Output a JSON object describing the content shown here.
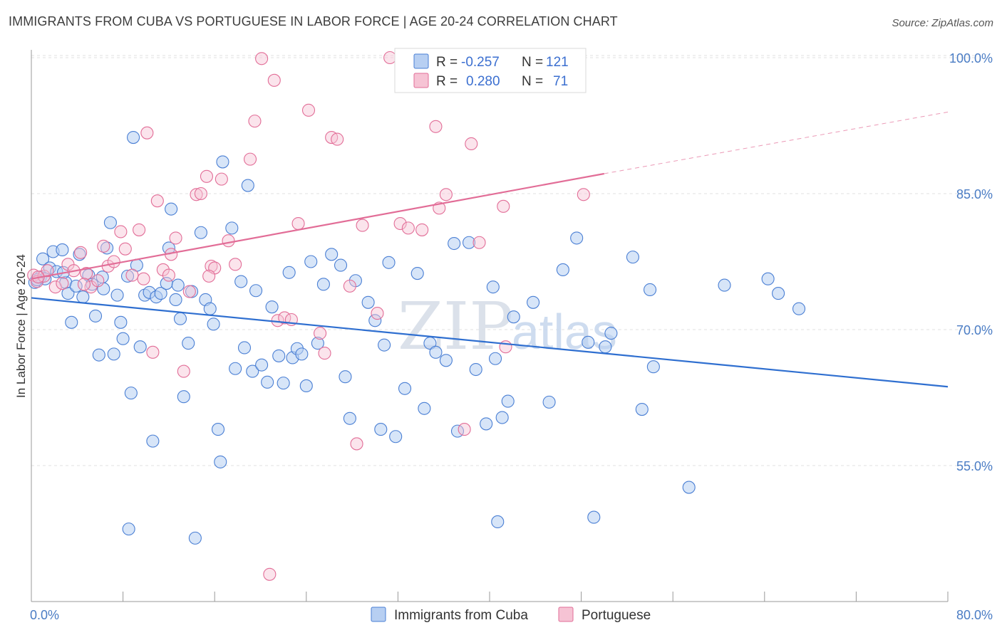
{
  "title": "IMMIGRANTS FROM CUBA VS PORTUGUESE IN LABOR FORCE | AGE 20-24 CORRELATION CHART",
  "source": "Source: ZipAtlas.com",
  "watermark": {
    "zip": "ZIP",
    "atlas": "atlas"
  },
  "legend": {
    "cuba": {
      "r_label": "R =",
      "r_value": "-0.257",
      "n_label": "N =",
      "n_value": "121"
    },
    "portuguese": {
      "r_label": "R =",
      "r_value": "0.280",
      "n_label": "N =",
      "n_value": "71"
    }
  },
  "bottom_legend": {
    "cuba": "Immigrants from Cuba",
    "portuguese": "Portuguese"
  },
  "colors": {
    "cuba": "#4a7fd4",
    "cuba_fill": "#b7cff2",
    "portuguese": "#e26d97",
    "portuguese_fill": "#f6c3d4",
    "tick": "#4a7cc4"
  },
  "chart_data": {
    "type": "scatter",
    "title": "IMMIGRANTS FROM CUBA VS PORTUGUESE IN LABOR FORCE | AGE 20-24 CORRELATION CHART",
    "xlabel": "",
    "ylabel": "In Labor Force | Age 20-24",
    "xlim": [
      0,
      80
    ],
    "ylim": [
      40,
      102
    ],
    "x_ticks": [
      "0.0%",
      "80.0%"
    ],
    "y_ticks": [
      {
        "value": 55,
        "label": "55.0%"
      },
      {
        "value": 70,
        "label": "70.0%"
      },
      {
        "value": 85,
        "label": "85.0%"
      },
      {
        "value": 100,
        "label": "100.0%"
      }
    ],
    "grid": true,
    "legend_position": "top-center",
    "series": [
      {
        "name": "Immigrants from Cuba",
        "trend": {
          "x0": 0,
          "y0": 73.5,
          "x1": 80,
          "y1": 63.7
        },
        "points": [
          [
            0.3,
            75.2
          ],
          [
            0.8,
            75.8
          ],
          [
            1.0,
            77.8
          ],
          [
            1.2,
            75.6
          ],
          [
            1.6,
            76.8
          ],
          [
            1.9,
            78.6
          ],
          [
            2.2,
            76.4
          ],
          [
            2.7,
            78.8
          ],
          [
            3.0,
            75.2
          ],
          [
            3.2,
            74.0
          ],
          [
            3.5,
            70.8
          ],
          [
            3.9,
            74.8
          ],
          [
            4.2,
            78.3
          ],
          [
            4.5,
            73.6
          ],
          [
            5.0,
            76.0
          ],
          [
            5.3,
            75.0
          ],
          [
            5.6,
            71.5
          ],
          [
            5.9,
            67.2
          ],
          [
            6.3,
            74.5
          ],
          [
            6.6,
            79.0
          ],
          [
            6.9,
            81.8
          ],
          [
            7.2,
            67.3
          ],
          [
            7.5,
            73.8
          ],
          [
            7.8,
            70.8
          ],
          [
            8.0,
            69.0
          ],
          [
            8.4,
            75.9
          ],
          [
            8.7,
            63.0
          ],
          [
            8.9,
            91.2
          ],
          [
            9.2,
            77.1
          ],
          [
            9.5,
            68.1
          ],
          [
            9.9,
            73.8
          ],
          [
            10.3,
            74.1
          ],
          [
            10.6,
            57.7
          ],
          [
            10.9,
            73.6
          ],
          [
            11.3,
            74.0
          ],
          [
            11.8,
            75.1
          ],
          [
            12.0,
            79.0
          ],
          [
            12.2,
            83.3
          ],
          [
            12.6,
            73.3
          ],
          [
            13.0,
            71.2
          ],
          [
            13.3,
            62.6
          ],
          [
            13.7,
            68.5
          ],
          [
            14.0,
            74.2
          ],
          [
            14.8,
            80.7
          ],
          [
            15.2,
            73.3
          ],
          [
            15.6,
            72.3
          ],
          [
            15.9,
            70.6
          ],
          [
            16.3,
            59.0
          ],
          [
            16.5,
            55.4
          ],
          [
            16.7,
            88.5
          ],
          [
            17.5,
            81.2
          ],
          [
            17.8,
            65.7
          ],
          [
            18.3,
            75.3
          ],
          [
            18.6,
            68.0
          ],
          [
            18.9,
            85.9
          ],
          [
            19.3,
            65.4
          ],
          [
            19.6,
            74.3
          ],
          [
            20.1,
            66.1
          ],
          [
            20.6,
            64.2
          ],
          [
            21.0,
            72.5
          ],
          [
            21.6,
            67.1
          ],
          [
            22.0,
            64.1
          ],
          [
            22.5,
            76.3
          ],
          [
            22.8,
            66.9
          ],
          [
            23.2,
            67.9
          ],
          [
            23.6,
            67.3
          ],
          [
            24.0,
            63.8
          ],
          [
            24.4,
            77.5
          ],
          [
            25.0,
            68.5
          ],
          [
            25.5,
            75.0
          ],
          [
            26.2,
            78.3
          ],
          [
            27.0,
            77.1
          ],
          [
            27.4,
            64.8
          ],
          [
            27.8,
            60.2
          ],
          [
            28.3,
            75.4
          ],
          [
            29.4,
            73.0
          ],
          [
            30.0,
            71.0
          ],
          [
            30.5,
            59.0
          ],
          [
            30.8,
            68.3
          ],
          [
            31.2,
            77.4
          ],
          [
            31.8,
            58.2
          ],
          [
            32.6,
            63.5
          ],
          [
            33.7,
            76.2
          ],
          [
            34.3,
            61.3
          ],
          [
            34.8,
            68.5
          ],
          [
            35.3,
            67.5
          ],
          [
            36.2,
            66.6
          ],
          [
            36.9,
            79.5
          ],
          [
            37.2,
            58.8
          ],
          [
            38.2,
            79.6
          ],
          [
            38.8,
            65.6
          ],
          [
            39.7,
            59.6
          ],
          [
            40.3,
            74.7
          ],
          [
            40.5,
            66.8
          ],
          [
            41.1,
            60.3
          ],
          [
            41.6,
            62.1
          ],
          [
            42.1,
            71.4
          ],
          [
            43.8,
            73.0
          ],
          [
            45.2,
            62.0
          ],
          [
            46.4,
            76.6
          ],
          [
            47.6,
            80.1
          ],
          [
            48.6,
            68.6
          ],
          [
            49.1,
            49.3
          ],
          [
            50.1,
            68.1
          ],
          [
            50.6,
            69.6
          ],
          [
            52.5,
            78.0
          ],
          [
            53.3,
            61.2
          ],
          [
            54.0,
            74.4
          ],
          [
            54.3,
            65.9
          ],
          [
            57.4,
            52.6
          ],
          [
            40.7,
            48.8
          ],
          [
            60.5,
            74.9
          ],
          [
            64.3,
            75.6
          ],
          [
            65.2,
            74.0
          ],
          [
            67.0,
            72.3
          ],
          [
            8.5,
            48.0
          ],
          [
            14.3,
            47.0
          ],
          [
            0.5,
            75.5
          ],
          [
            2.8,
            76.3
          ],
          [
            6.2,
            75.8
          ],
          [
            12.8,
            74.9
          ]
        ]
      },
      {
        "name": "Portuguese",
        "trend": {
          "x0": 0,
          "y0": 75.6,
          "x1": 50,
          "y1": 87.2,
          "dashed_to": {
            "x": 80,
            "y": 94.0
          }
        },
        "points": [
          [
            0.2,
            76.0
          ],
          [
            0.5,
            75.3
          ],
          [
            1.1,
            75.9
          ],
          [
            1.4,
            76.5
          ],
          [
            2.1,
            74.7
          ],
          [
            2.7,
            75.1
          ],
          [
            3.2,
            77.2
          ],
          [
            3.7,
            76.5
          ],
          [
            4.3,
            78.5
          ],
          [
            4.8,
            76.2
          ],
          [
            5.2,
            74.7
          ],
          [
            5.8,
            75.4
          ],
          [
            6.3,
            79.2
          ],
          [
            6.7,
            77.0
          ],
          [
            7.2,
            77.5
          ],
          [
            7.8,
            80.8
          ],
          [
            8.2,
            78.9
          ],
          [
            8.8,
            76.0
          ],
          [
            9.4,
            81.0
          ],
          [
            10.1,
            91.7
          ],
          [
            10.6,
            67.5
          ],
          [
            11.0,
            84.2
          ],
          [
            11.5,
            76.6
          ],
          [
            12.2,
            78.3
          ],
          [
            12.6,
            80.1
          ],
          [
            13.3,
            65.4
          ],
          [
            13.8,
            74.2
          ],
          [
            14.4,
            84.9
          ],
          [
            14.8,
            85.0
          ],
          [
            15.3,
            86.9
          ],
          [
            15.7,
            77.0
          ],
          [
            16.0,
            76.8
          ],
          [
            16.6,
            86.6
          ],
          [
            17.2,
            79.8
          ],
          [
            17.8,
            77.2
          ],
          [
            19.1,
            88.8
          ],
          [
            19.5,
            93.0
          ],
          [
            20.1,
            99.9
          ],
          [
            21.2,
            97.5
          ],
          [
            21.5,
            71.0
          ],
          [
            22.1,
            71.3
          ],
          [
            23.3,
            81.7
          ],
          [
            24.2,
            94.2
          ],
          [
            25.2,
            69.6
          ],
          [
            25.6,
            67.4
          ],
          [
            26.2,
            91.2
          ],
          [
            26.7,
            91.0
          ],
          [
            27.8,
            74.8
          ],
          [
            28.4,
            57.4
          ],
          [
            28.9,
            81.5
          ],
          [
            30.2,
            71.8
          ],
          [
            31.3,
            100.0
          ],
          [
            32.2,
            81.7
          ],
          [
            32.9,
            81.2
          ],
          [
            34.1,
            81.0
          ],
          [
            35.3,
            92.4
          ],
          [
            35.6,
            83.4
          ],
          [
            36.2,
            84.9
          ],
          [
            37.8,
            59.0
          ],
          [
            38.4,
            90.5
          ],
          [
            39.1,
            79.6
          ],
          [
            41.2,
            83.6
          ],
          [
            41.4,
            68.1
          ],
          [
            48.2,
            84.9
          ],
          [
            20.8,
            43.0
          ],
          [
            0.6,
            75.8
          ],
          [
            9.8,
            75.6
          ],
          [
            4.6,
            75.0
          ],
          [
            12.0,
            76.0
          ],
          [
            22.7,
            71.1
          ],
          [
            15.5,
            75.9
          ]
        ]
      }
    ]
  }
}
